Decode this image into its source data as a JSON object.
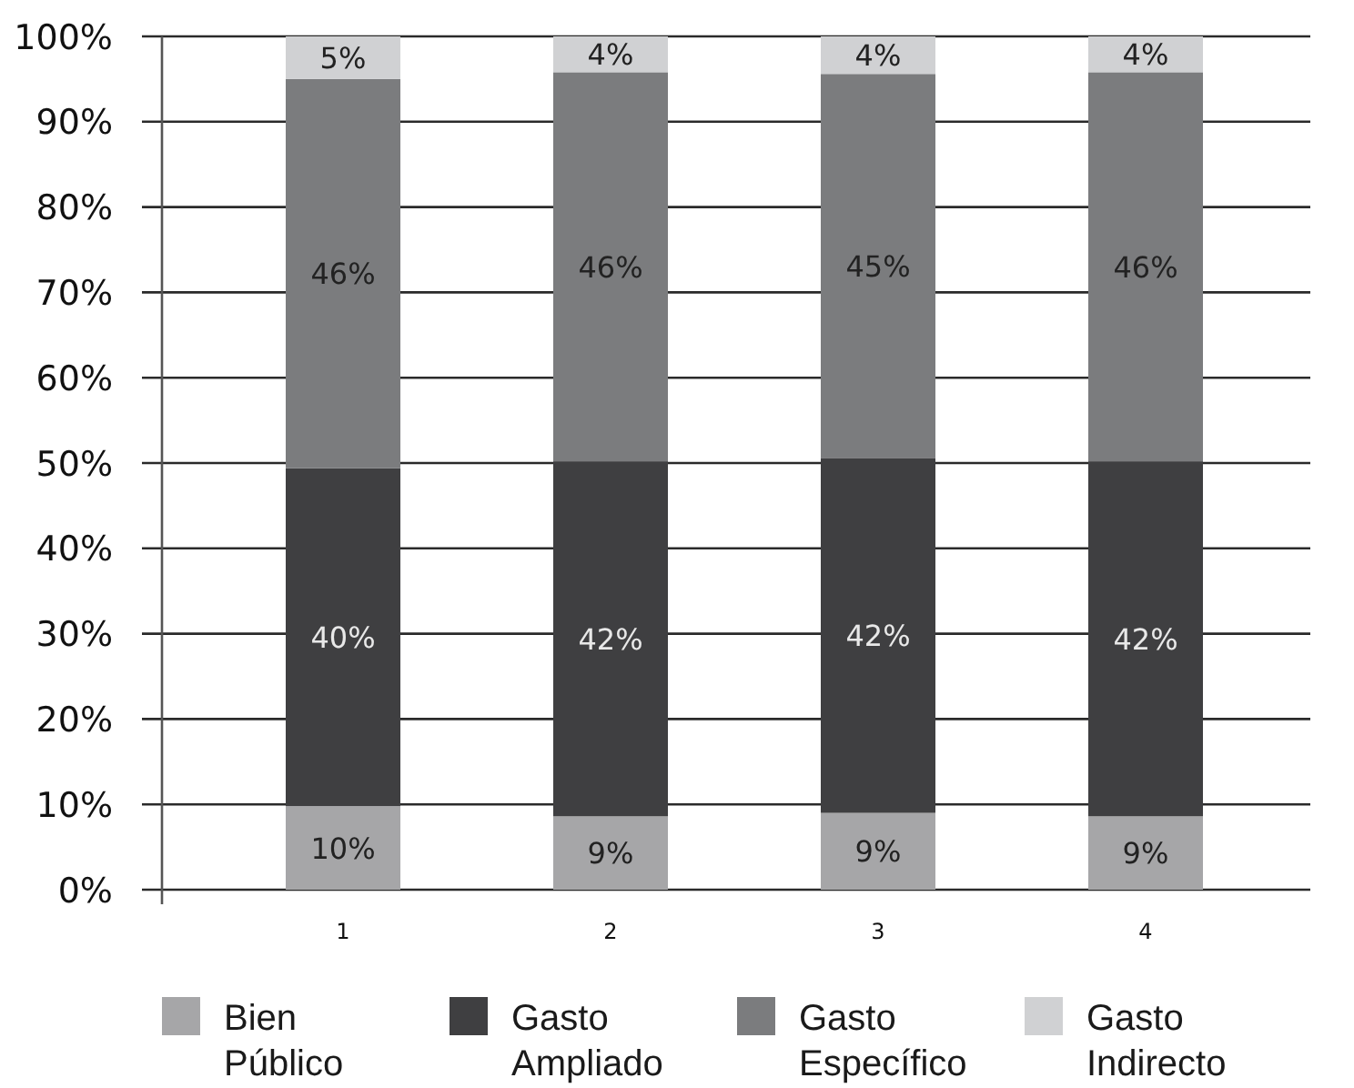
{
  "chart_data": {
    "type": "bar",
    "stacked": true,
    "categories": [
      "1",
      "2",
      "3",
      "4"
    ],
    "series": [
      {
        "name": "Bien Público",
        "color": "#a6a6a8",
        "values": [
          9.8,
          8.6,
          9.0,
          8.6
        ],
        "value_labels": [
          "10%",
          "9%",
          "9%",
          "9%"
        ]
      },
      {
        "name": "Gasto Ampliado",
        "color": "#3f3f41",
        "values": [
          39.6,
          41.6,
          41.6,
          41.6
        ],
        "value_labels": [
          "40%",
          "42%",
          "42%",
          "42%"
        ]
      },
      {
        "name": "Gasto Específico",
        "color": "#7b7c7e",
        "values": [
          45.6,
          45.6,
          45.0,
          45.6
        ],
        "value_labels": [
          "46%",
          "46%",
          "45%",
          "46%"
        ]
      },
      {
        "name": "Gasto Indirecto",
        "color": "#d0d1d3",
        "values": [
          5.0,
          4.2,
          4.4,
          4.2
        ],
        "value_labels": [
          "5%",
          "4%",
          "4%",
          "4%"
        ]
      }
    ],
    "ylim": [
      0,
      100
    ],
    "yticks": [
      {
        "value": 0,
        "label": "0%"
      },
      {
        "value": 10,
        "label": "10%"
      },
      {
        "value": 20,
        "label": "20%"
      },
      {
        "value": 30,
        "label": "30%"
      },
      {
        "value": 40,
        "label": "40%"
      },
      {
        "value": 50,
        "label": "50%"
      },
      {
        "value": 60,
        "label": "60%"
      },
      {
        "value": 70,
        "label": "70%"
      },
      {
        "value": 80,
        "label": "80%"
      },
      {
        "value": 90,
        "label": "90%"
      },
      {
        "value": 100,
        "label": "100%"
      }
    ],
    "grid": "y",
    "legend": "bottom"
  }
}
